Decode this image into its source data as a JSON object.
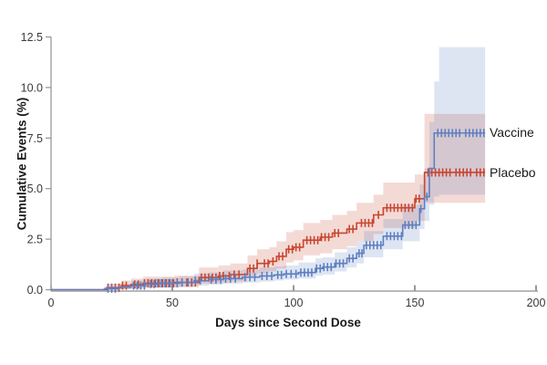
{
  "figure": {
    "ylabel": "Cumulative Events (%)",
    "xlabel": "Days since Second Dose",
    "legend": {
      "vaccine": "Vaccine",
      "placebo": "Placebo"
    }
  },
  "chart_data": {
    "type": "line",
    "subtype": "cumulative-incidence-step-curves-with-confidence-bands",
    "title": "",
    "xlabel": "Days since Second Dose",
    "ylabel": "Cumulative Events (%)",
    "xlim": [
      0,
      200
    ],
    "ylim": [
      0,
      12.5
    ],
    "xticks": [
      "0",
      "50",
      "100",
      "150",
      "200"
    ],
    "yticks": [
      "0.0",
      "2.5",
      "5.0",
      "7.5",
      "10.0",
      "12.5"
    ],
    "grid": false,
    "legend_position": "right of line ends",
    "axis_colors": {
      "x_axis_line": "#b8b8b8",
      "y_axis_line": "#999999",
      "tick_text": "#3a3a3a"
    },
    "series": [
      {
        "name": "Placebo",
        "color": "#c9462f",
        "band_color": "#c9462f",
        "band_opacity": 0.2,
        "end_day": 179,
        "steps": [
          [
            0,
            0
          ],
          [
            23,
            0.1
          ],
          [
            29,
            0.2
          ],
          [
            33,
            0.26
          ],
          [
            38,
            0.32
          ],
          [
            51,
            0.36
          ],
          [
            61,
            0.6
          ],
          [
            69,
            0.68
          ],
          [
            74,
            0.75
          ],
          [
            81,
            1.05
          ],
          [
            85,
            1.3
          ],
          [
            90,
            1.4
          ],
          [
            93,
            1.65
          ],
          [
            97,
            2.0
          ],
          [
            100,
            2.1
          ],
          [
            104,
            2.45
          ],
          [
            111,
            2.6
          ],
          [
            116,
            2.8
          ],
          [
            122,
            3.0
          ],
          [
            126,
            3.3
          ],
          [
            133,
            3.7
          ],
          [
            137,
            4.05
          ],
          [
            150,
            4.5
          ],
          [
            154,
            5.8
          ]
        ],
        "band": [
          [
            23,
            0,
            0.3
          ],
          [
            29,
            0.03,
            0.45
          ],
          [
            33,
            0.06,
            0.55
          ],
          [
            38,
            0.1,
            0.65
          ],
          [
            51,
            0.12,
            0.7
          ],
          [
            61,
            0.3,
            1.1
          ],
          [
            69,
            0.35,
            1.2
          ],
          [
            74,
            0.4,
            1.3
          ],
          [
            81,
            0.6,
            1.7
          ],
          [
            85,
            0.8,
            2.0
          ],
          [
            90,
            0.9,
            2.1
          ],
          [
            93,
            1.05,
            2.4
          ],
          [
            97,
            1.35,
            2.85
          ],
          [
            100,
            1.45,
            2.95
          ],
          [
            104,
            1.7,
            3.3
          ],
          [
            111,
            1.8,
            3.45
          ],
          [
            116,
            2.0,
            3.7
          ],
          [
            122,
            2.15,
            3.9
          ],
          [
            126,
            2.4,
            4.3
          ],
          [
            133,
            2.75,
            4.7
          ],
          [
            137,
            3.05,
            5.3
          ],
          [
            150,
            3.4,
            5.7
          ],
          [
            154,
            4.3,
            8.7
          ],
          [
            178,
            4.3,
            8.7
          ]
        ],
        "censor_days": [
          23.5,
          25,
          26.5,
          28,
          29.5,
          31,
          34.5,
          36,
          38.5,
          40,
          41.5,
          43,
          44.5,
          46,
          47.5,
          49,
          50.5,
          52,
          54,
          56,
          58,
          59.5,
          62,
          63.5,
          65,
          66.5,
          68,
          69.5,
          71,
          73.5,
          75.5,
          77.5,
          82,
          83.5,
          85,
          88,
          89.5,
          91.5,
          94,
          95.5,
          98,
          99.5,
          101,
          102.5,
          105.5,
          107,
          108.5,
          110,
          111.5,
          113,
          114.5,
          117,
          118.5,
          123,
          124.5,
          128,
          129.5,
          131,
          132.5,
          135,
          138.5,
          140,
          141.5,
          143,
          144.5,
          146,
          147.5,
          149,
          150.5,
          151.8,
          155.5,
          157,
          158.5,
          160,
          161.5,
          163,
          164.5,
          167,
          168.5,
          170,
          171.5,
          173,
          175.5,
          177,
          178.5
        ]
      },
      {
        "name": "Vaccine",
        "color": "#5f7fc1",
        "band_color": "#5b7dbe",
        "band_opacity": 0.2,
        "end_day": 179,
        "steps": [
          [
            0,
            0
          ],
          [
            22,
            0.05
          ],
          [
            28,
            0.12
          ],
          [
            33,
            0.2
          ],
          [
            39,
            0.28
          ],
          [
            44,
            0.32
          ],
          [
            53,
            0.36
          ],
          [
            59,
            0.45
          ],
          [
            65,
            0.5
          ],
          [
            71,
            0.55
          ],
          [
            79,
            0.62
          ],
          [
            86,
            0.68
          ],
          [
            92,
            0.73
          ],
          [
            96,
            0.78
          ],
          [
            102,
            0.85
          ],
          [
            109,
            1.05
          ],
          [
            112,
            1.12
          ],
          [
            117,
            1.3
          ],
          [
            122,
            1.55
          ],
          [
            126,
            1.8
          ],
          [
            129,
            2.2
          ],
          [
            137,
            2.65
          ],
          [
            145,
            3.2
          ],
          [
            152,
            4.0
          ],
          [
            154,
            4.6
          ],
          [
            156,
            6.0
          ],
          [
            158,
            7.75
          ]
        ],
        "band": [
          [
            22,
            0,
            0.15
          ],
          [
            28,
            0.02,
            0.3
          ],
          [
            33,
            0.05,
            0.45
          ],
          [
            39,
            0.1,
            0.55
          ],
          [
            46,
            0.12,
            0.6
          ],
          [
            53,
            0.15,
            0.65
          ],
          [
            59,
            0.2,
            0.8
          ],
          [
            65,
            0.25,
            0.85
          ],
          [
            71,
            0.3,
            0.95
          ],
          [
            79,
            0.35,
            1.0
          ],
          [
            86,
            0.4,
            1.1
          ],
          [
            92,
            0.45,
            1.15
          ],
          [
            96,
            0.5,
            1.2
          ],
          [
            102,
            0.55,
            1.35
          ],
          [
            109,
            0.7,
            1.55
          ],
          [
            112,
            0.75,
            1.6
          ],
          [
            117,
            0.9,
            1.85
          ],
          [
            122,
            1.1,
            2.1
          ],
          [
            126,
            1.3,
            2.4
          ],
          [
            129,
            1.6,
            2.9
          ],
          [
            137,
            2.0,
            3.5
          ],
          [
            145,
            2.4,
            4.2
          ],
          [
            152,
            3.0,
            5.2
          ],
          [
            154,
            3.4,
            6.0
          ],
          [
            156,
            4.2,
            8.3
          ],
          [
            158,
            4.6,
            10.3
          ],
          [
            160,
            4.7,
            12.0
          ],
          [
            178,
            4.7,
            12.0
          ]
        ],
        "censor_days": [
          23.5,
          25,
          26.5,
          34,
          35.5,
          37,
          38.5,
          41,
          42.5,
          44,
          45.5,
          47,
          48.5,
          50,
          52,
          54,
          56.5,
          59.5,
          61.5,
          66,
          68,
          70,
          72,
          74,
          76,
          80,
          82,
          84,
          87,
          89,
          91,
          93.5,
          95,
          97,
          99,
          101,
          103,
          104.5,
          106,
          107.5,
          109.5,
          111,
          112.5,
          114,
          115.5,
          117.5,
          119,
          120.5,
          123,
          124.5,
          127,
          128.2,
          130,
          131.5,
          133,
          134.5,
          136,
          138.5,
          140,
          141.5,
          143,
          144.5,
          146,
          147.5,
          149,
          150.5,
          152.5,
          155,
          159.5,
          161,
          162.5,
          164,
          165.5,
          167,
          168.5,
          171,
          172.5,
          174,
          175.5,
          177,
          178.5
        ]
      }
    ]
  }
}
